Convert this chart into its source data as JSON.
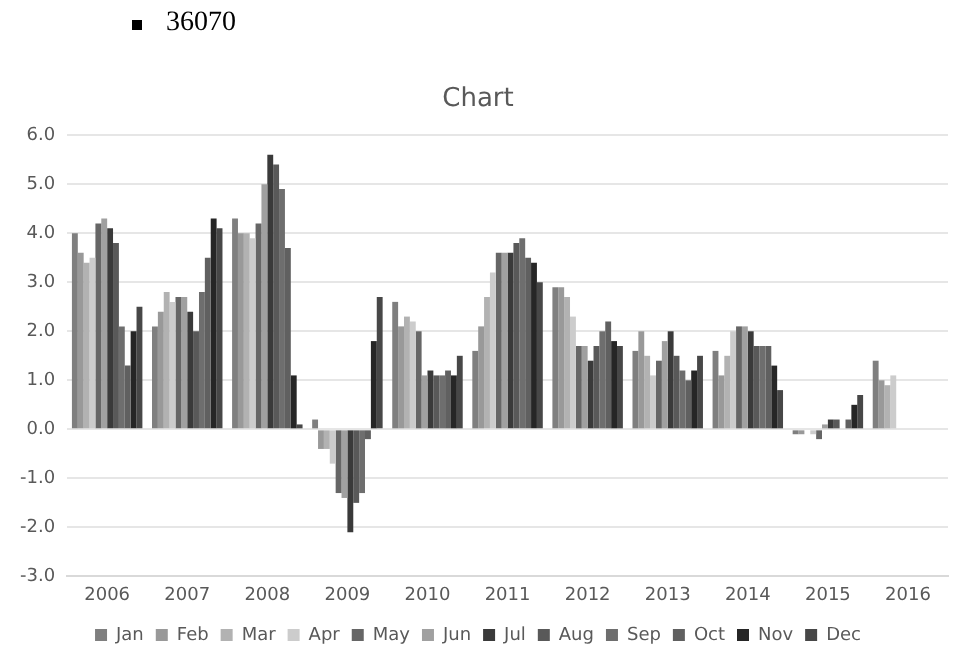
{
  "chart_data": {
    "type": "bar",
    "title": "Chart",
    "annotations": [
      "36070"
    ],
    "categories": [
      "2006",
      "2007",
      "2008",
      "2009",
      "2010",
      "2011",
      "2012",
      "2013",
      "2014",
      "2015",
      "2016"
    ],
    "series": [
      {
        "name": "Jan",
        "color": "#7f7f7f",
        "values": [
          4.0,
          2.1,
          4.3,
          0.2,
          2.6,
          1.6,
          2.9,
          1.6,
          1.6,
          -0.1,
          1.4
        ]
      },
      {
        "name": "Feb",
        "color": "#999999",
        "values": [
          3.6,
          2.4,
          4.0,
          -0.4,
          2.1,
          2.1,
          2.9,
          2.0,
          1.1,
          -0.1,
          1.0
        ]
      },
      {
        "name": "Mar",
        "color": "#b2b2b2",
        "values": [
          3.4,
          2.8,
          4.0,
          -0.4,
          2.3,
          2.7,
          2.7,
          1.5,
          1.5,
          0.0,
          0.9
        ]
      },
      {
        "name": "Apr",
        "color": "#cccccc",
        "values": [
          3.5,
          2.6,
          3.9,
          -0.7,
          2.2,
          3.2,
          2.3,
          1.1,
          2.0,
          -0.1,
          1.1
        ]
      },
      {
        "name": "May",
        "color": "#666666",
        "values": [
          4.2,
          2.7,
          4.2,
          -1.3,
          2.0,
          3.6,
          1.7,
          1.4,
          2.1,
          -0.2,
          null
        ]
      },
      {
        "name": "Jun",
        "color": "#a0a0a0",
        "values": [
          4.3,
          2.7,
          5.0,
          -1.4,
          1.1,
          3.6,
          1.7,
          1.8,
          2.1,
          0.1,
          null
        ]
      },
      {
        "name": "Jul",
        "color": "#3a3a3a",
        "values": [
          4.1,
          2.4,
          5.6,
          -2.1,
          1.2,
          3.6,
          1.4,
          2.0,
          2.0,
          0.2,
          null
        ]
      },
      {
        "name": "Aug",
        "color": "#595959",
        "values": [
          3.8,
          2.0,
          5.4,
          -1.5,
          1.1,
          3.8,
          1.7,
          1.5,
          1.7,
          0.2,
          null
        ]
      },
      {
        "name": "Sep",
        "color": "#6e6e6e",
        "values": [
          2.1,
          2.8,
          4.9,
          -1.3,
          1.1,
          3.9,
          2.0,
          1.2,
          1.7,
          0.0,
          null
        ]
      },
      {
        "name": "Oct",
        "color": "#606060",
        "values": [
          1.3,
          3.5,
          3.7,
          -0.2,
          1.2,
          3.5,
          2.2,
          1.0,
          1.7,
          0.2,
          null
        ]
      },
      {
        "name": "Nov",
        "color": "#262626",
        "values": [
          2.0,
          4.3,
          1.1,
          1.8,
          1.1,
          3.4,
          1.8,
          1.2,
          1.3,
          0.5,
          null
        ]
      },
      {
        "name": "Dec",
        "color": "#474747",
        "values": [
          2.5,
          4.1,
          0.1,
          2.7,
          1.5,
          3.0,
          1.7,
          1.5,
          0.8,
          0.7,
          null
        ]
      }
    ],
    "ylim": [
      -3,
      6
    ],
    "yticks": [
      {
        "value": -3,
        "label": "-3.0"
      },
      {
        "value": -2,
        "label": "-2.0"
      },
      {
        "value": -1,
        "label": "-1.0"
      },
      {
        "value": 0,
        "label": "0.0"
      },
      {
        "value": 1,
        "label": "1.0"
      },
      {
        "value": 2,
        "label": "2.0"
      },
      {
        "value": 3,
        "label": "3.0"
      },
      {
        "value": 4,
        "label": "4.0"
      },
      {
        "value": 5,
        "label": "5.0"
      },
      {
        "value": 6,
        "label": "6.0"
      }
    ],
    "grid": "y",
    "legend": "bottom"
  }
}
